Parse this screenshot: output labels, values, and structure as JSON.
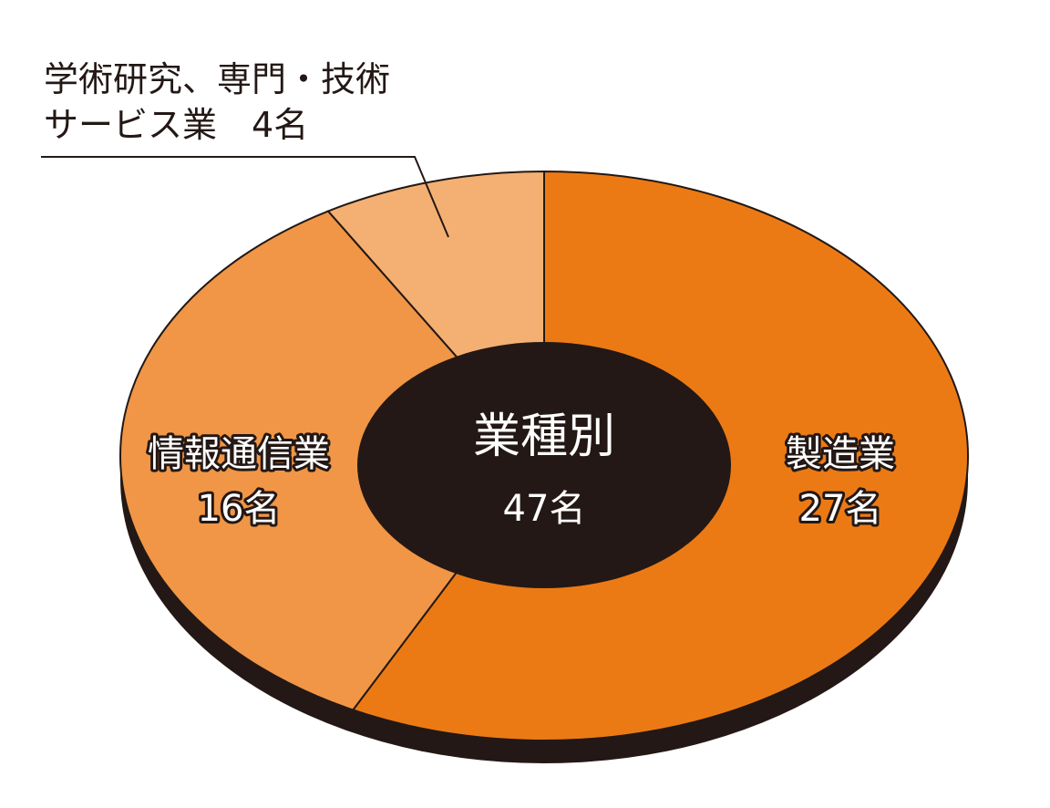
{
  "chart_data": {
    "type": "donut",
    "categories": [
      "製造業",
      "情報通信業",
      "学術研究、専門・技術サービス業"
    ],
    "values": [
      27,
      16,
      4
    ],
    "value_labels": [
      "27名",
      "16名",
      "4名"
    ],
    "colors": [
      "#ec7a14",
      "#f09646",
      "#f4b072"
    ],
    "center_text": [
      "業種別",
      "47名"
    ]
  }
}
